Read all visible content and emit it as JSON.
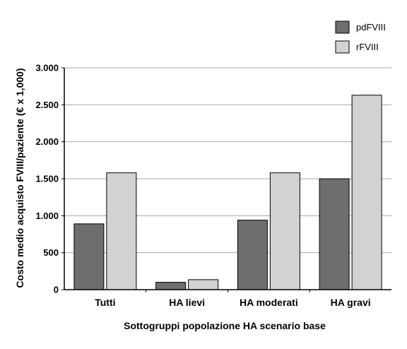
{
  "chart_data": {
    "type": "bar",
    "title": "",
    "xlabel": "Sottogruppi popolazione HA scenario base",
    "ylabel": "Costo medio acquisto FVIII/paziente (€ x 1,000)",
    "categories": [
      "Tutti",
      "HA lievi",
      "HA moderati",
      "HA gravi"
    ],
    "series": [
      {
        "name": "pdFVIII",
        "color": "#6e6e6e",
        "values": [
          890,
          100,
          940,
          1500
        ]
      },
      {
        "name": "rFVIII",
        "color": "#d2d2d2",
        "values": [
          1580,
          135,
          1580,
          2630
        ]
      }
    ],
    "ylim": [
      0,
      3000
    ],
    "yticks": [
      0,
      500,
      1000,
      1500,
      2000,
      2500,
      3000
    ],
    "ytick_labels": [
      "0",
      "500",
      "1.000",
      "1.500",
      "2.000",
      "2.500",
      "3.000"
    ],
    "grid": true,
    "legend_position": "top-right"
  }
}
